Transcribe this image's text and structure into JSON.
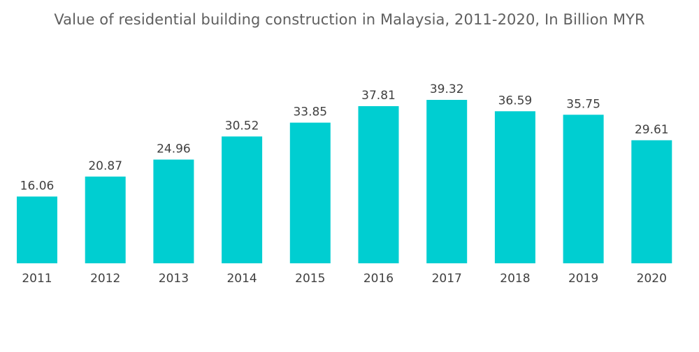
{
  "chart_data": {
    "type": "bar",
    "title": "Value of residential building construction in Malaysia, 2011-2020, In Billion MYR",
    "xlabel": "",
    "ylabel": "",
    "categories": [
      "2011",
      "2012",
      "2013",
      "2014",
      "2015",
      "2016",
      "2017",
      "2018",
      "2019",
      "2020"
    ],
    "values": [
      16.06,
      20.87,
      24.96,
      30.52,
      33.85,
      37.81,
      39.32,
      36.59,
      35.75,
      29.61
    ],
    "value_labels": [
      "16.06",
      "20.87",
      "24.96",
      "30.52",
      "33.85",
      "37.81",
      "39.32",
      "36.59",
      "35.75",
      "29.61"
    ],
    "ylim": [
      0,
      45
    ],
    "grid": false,
    "legend": "none",
    "bar_color": "#00CED1"
  }
}
